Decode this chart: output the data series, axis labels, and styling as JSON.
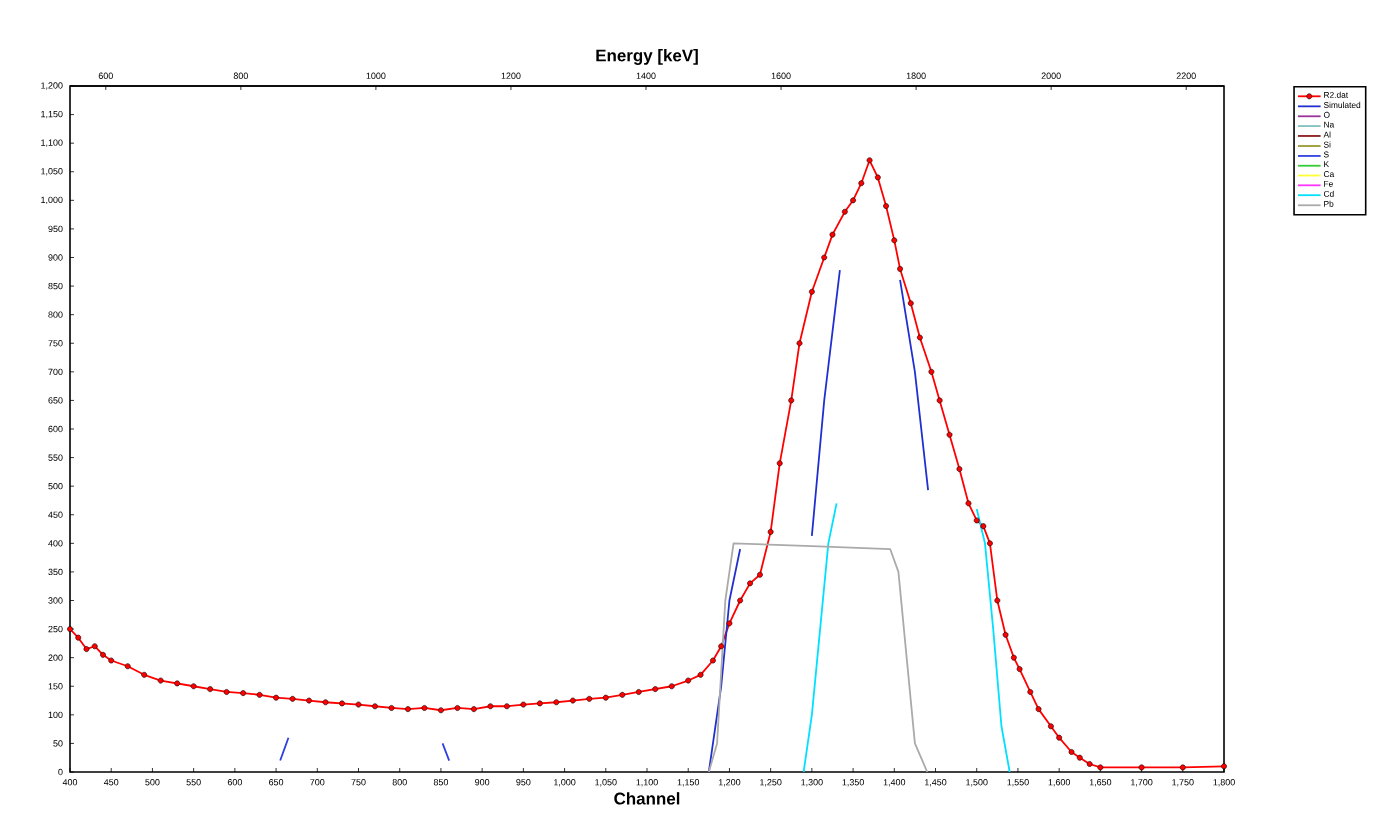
{
  "chart_data": {
    "type": "line",
    "xlabel": "Channel",
    "x2label": "Energy [keV]",
    "xlim": [
      400,
      1800
    ],
    "ylim": [
      0,
      1200
    ],
    "x2lim": [
      547,
      2256
    ],
    "xticks": [
      400,
      450,
      500,
      550,
      600,
      650,
      700,
      750,
      800,
      850,
      900,
      950,
      {
        "value": 1000,
        "label": "1,000"
      },
      {
        "value": 1050,
        "label": "1,050"
      },
      {
        "value": 1100,
        "label": "1,100"
      },
      {
        "value": 1150,
        "label": "1,150"
      },
      {
        "value": 1200,
        "label": "1,200"
      },
      {
        "value": 1250,
        "label": "1,250"
      },
      {
        "value": 1300,
        "label": "1,300"
      },
      {
        "value": 1350,
        "label": "1,350"
      },
      {
        "value": 1400,
        "label": "1,400"
      },
      {
        "value": 1450,
        "label": "1,450"
      },
      {
        "value": 1500,
        "label": "1,500"
      },
      {
        "value": 1550,
        "label": "1,550"
      },
      {
        "value": 1600,
        "label": "1,600"
      },
      {
        "value": 1650,
        "label": "1,650"
      },
      {
        "value": 1700,
        "label": "1,700"
      },
      {
        "value": 1750,
        "label": "1,750"
      },
      {
        "value": 1800,
        "label": "1,800"
      }
    ],
    "yticks": [
      0,
      50,
      100,
      150,
      200,
      250,
      300,
      350,
      400,
      450,
      500,
      550,
      600,
      650,
      700,
      750,
      800,
      850,
      900,
      950,
      {
        "value": 1000,
        "label": "1,000"
      },
      {
        "value": 1050,
        "label": "1,050"
      },
      {
        "value": 1100,
        "label": "1,100"
      },
      {
        "value": 1150,
        "label": "1,150"
      },
      {
        "value": 1200,
        "label": "1,200"
      }
    ],
    "x2ticks": [
      600,
      800,
      1000,
      1200,
      1400,
      1600,
      1800,
      2000,
      2200
    ],
    "grid": false,
    "legend": "right",
    "series": [
      {
        "name": "R2.dat",
        "color": "#ff0000",
        "marker": "circle",
        "x": [
          400,
          410,
          420,
          430,
          440,
          450,
          470,
          490,
          510,
          530,
          550,
          570,
          590,
          610,
          630,
          650,
          670,
          690,
          710,
          730,
          750,
          770,
          790,
          810,
          830,
          850,
          870,
          890,
          910,
          930,
          950,
          970,
          990,
          1010,
          1030,
          1050,
          1070,
          1090,
          1110,
          1130,
          1150,
          1165,
          1180,
          1190,
          1200,
          1213,
          1225,
          1237,
          1250,
          1261,
          1275,
          1285,
          1300,
          1315,
          1325,
          1340,
          1350,
          1360,
          1370,
          1380,
          1390,
          1400,
          1407,
          1420,
          1431,
          1445,
          1455,
          1467,
          1479,
          1490,
          1500,
          1508,
          1516,
          1525,
          1535,
          1545,
          1552,
          1565,
          1575,
          1590,
          1600,
          1615,
          1625,
          1637,
          1650,
          1700,
          1750,
          1800
        ],
        "values": [
          250,
          235,
          215,
          220,
          205,
          195,
          185,
          170,
          160,
          155,
          150,
          145,
          140,
          138,
          135,
          130,
          128,
          125,
          122,
          120,
          118,
          115,
          112,
          110,
          112,
          108,
          112,
          110,
          115,
          115,
          118,
          120,
          122,
          125,
          128,
          130,
          135,
          140,
          145,
          150,
          160,
          170,
          195,
          220,
          260,
          300,
          330,
          345,
          420,
          540,
          650,
          750,
          840,
          900,
          940,
          980,
          1000,
          1030,
          1070,
          1040,
          990,
          930,
          880,
          820,
          760,
          700,
          650,
          590,
          530,
          470,
          440,
          430,
          400,
          300,
          240,
          200,
          180,
          140,
          110,
          80,
          60,
          35,
          25,
          14,
          8,
          8,
          8,
          10
        ]
      },
      {
        "name": "Simulated",
        "color": "#2030d0",
        "marker": "none",
        "x": [
          1175,
          1190,
          1200,
          1213,
          1250,
          1300,
          1315,
          1334,
          1370,
          1407,
          1425,
          1441
        ],
        "values": [
          0,
          150,
          300,
          390,
          null,
          413,
          650,
          878,
          null,
          861,
          700,
          493
        ]
      },
      {
        "name": "O",
        "color": "#993399",
        "marker": "none"
      },
      {
        "name": "Na",
        "color": "#80c0c0",
        "marker": "none"
      },
      {
        "name": "Al",
        "color": "#8b1a1a",
        "marker": "none"
      },
      {
        "name": "Si",
        "color": "#999933",
        "marker": "none"
      },
      {
        "name": "S",
        "color": "#3040e0",
        "marker": "none",
        "x": [
          655,
          660,
          665,
          700,
          852,
          856,
          860
        ],
        "values": [
          20,
          40,
          60,
          null,
          50,
          35,
          20
        ]
      },
      {
        "name": "K",
        "color": "#33cc33",
        "marker": "none"
      },
      {
        "name": "Ca",
        "color": "#ffff33",
        "marker": "none"
      },
      {
        "name": "Fe",
        "color": "#ff33ff",
        "marker": "none"
      },
      {
        "name": "Cd",
        "color": "#00e0ff",
        "marker": "none",
        "x": [
          1290,
          1300,
          1310,
          1320,
          1330,
          1400,
          1500,
          1510,
          1520,
          1530,
          1540
        ],
        "values": [
          0,
          100,
          250,
          400,
          470,
          null,
          460,
          400,
          250,
          80,
          0
        ]
      },
      {
        "name": "Pb",
        "color": "#aaaaaa",
        "marker": "none",
        "x": [
          1175,
          1185,
          1195,
          1205,
          1300,
          1395,
          1405,
          1415,
          1425,
          1440
        ],
        "values": [
          0,
          50,
          300,
          400,
          395,
          390,
          350,
          200,
          50,
          0
        ]
      }
    ]
  }
}
